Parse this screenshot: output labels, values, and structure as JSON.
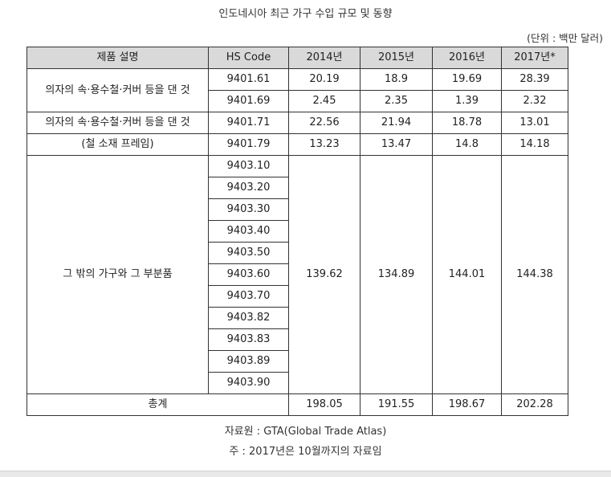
{
  "title": "인도네시아 최근 가구 수입 규모 및 동향",
  "unit": "(단위 : 백만 달러)",
  "header": {
    "desc": "제품 설명",
    "code": "HS Code",
    "y2014": "2014년",
    "y2015": "2015년",
    "y2016": "2016년",
    "y2017": "2017년*"
  },
  "group1": {
    "desc": "의자의 속·용수철·커버 등을 댄 것",
    "rows": [
      {
        "code": "9401.61",
        "v2014": "20.19",
        "v2015": "18.9",
        "v2016": "19.69",
        "v2017": "28.39"
      },
      {
        "code": "9401.69",
        "v2014": "2.45",
        "v2015": "2.35",
        "v2016": "1.39",
        "v2017": "2.32"
      }
    ]
  },
  "group2": {
    "desc_line1": "의자의 속·용수철·커버 등을 댄 것",
    "desc_line2": "(철 소재 프레임)",
    "rows": [
      {
        "code": "9401.71",
        "v2014": "22.56",
        "v2015": "21.94",
        "v2016": "18.78",
        "v2017": "13.01"
      },
      {
        "code": "9401.79",
        "v2014": "13.23",
        "v2015": "13.47",
        "v2016": "14.8",
        "v2017": "14.18"
      }
    ]
  },
  "group3": {
    "desc": "그 밖의 가구와 그 부분품",
    "codes": [
      "9403.10",
      "9403.20",
      "9403.30",
      "9403.40",
      "9403.50",
      "9403.60",
      "9403.70",
      "9403.82",
      "9403.83",
      "9403.89",
      "9403.90"
    ],
    "v2014": "139.62",
    "v2015": "134.89",
    "v2016": "144.01",
    "v2017": "144.38"
  },
  "total": {
    "label": "총계",
    "v2014": "198.05",
    "v2015": "191.55",
    "v2016": "198.67",
    "v2017": "202.28"
  },
  "source": "자료원 : GTA(Global Trade Atlas)",
  "note": "주 : 2017년은 10월까지의 자료임"
}
